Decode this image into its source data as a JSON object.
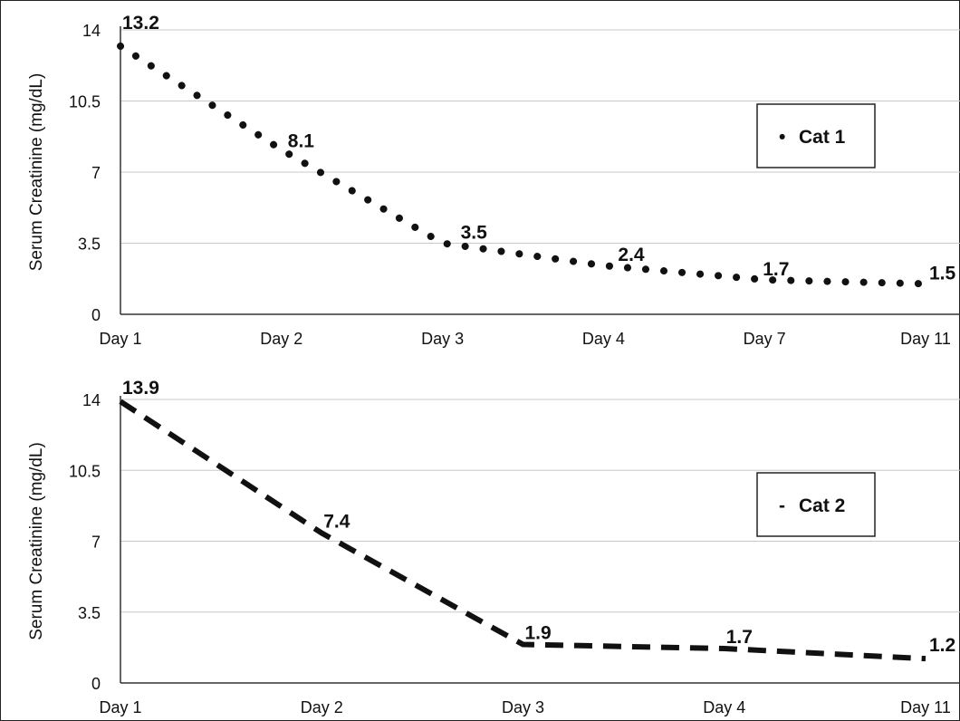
{
  "chart_data": [
    {
      "type": "line",
      "line_style": "dotted",
      "color": "#111111",
      "categories": [
        "Day 1",
        "Day 2",
        "Day 3",
        "Day 4",
        "Day 7",
        "Day 11"
      ],
      "series": [
        {
          "name": "Cat 1",
          "values": [
            13.2,
            8.1,
            3.5,
            2.4,
            1.7,
            1.5
          ]
        }
      ],
      "data_labels": [
        "13.2",
        "8.1",
        "3.5",
        "2.4",
        "1.7",
        "1.5"
      ],
      "ylabel": "Serum Creatinine (mg/dL)",
      "xlabel": "",
      "ylim": [
        0,
        14
      ],
      "yticks": [
        0,
        3.5,
        7,
        10.5,
        14
      ],
      "ytick_labels": [
        "0",
        "3.5",
        "7",
        "10.5",
        "14"
      ],
      "grid": true,
      "legend": {
        "position": "right",
        "marker": "•",
        "label": "Cat 1"
      }
    },
    {
      "type": "line",
      "line_style": "dashed",
      "color": "#111111",
      "categories": [
        "Day 1",
        "Day 2",
        "Day 3",
        "Day 4",
        "Day 11"
      ],
      "series": [
        {
          "name": "Cat 2",
          "values": [
            13.9,
            7.4,
            1.9,
            1.7,
            1.2
          ]
        }
      ],
      "data_labels": [
        "13.9",
        "7.4",
        "1.9",
        "1.7",
        "1.2"
      ],
      "ylabel": "Serum Creatinine (mg/dL)",
      "xlabel": "",
      "ylim": [
        0,
        14
      ],
      "yticks": [
        0,
        3.5,
        7,
        10.5,
        14
      ],
      "ytick_labels": [
        "0",
        "3.5",
        "7",
        "10.5",
        "14"
      ],
      "grid": true,
      "legend": {
        "position": "right",
        "marker": "-",
        "label": "Cat 2"
      }
    }
  ]
}
